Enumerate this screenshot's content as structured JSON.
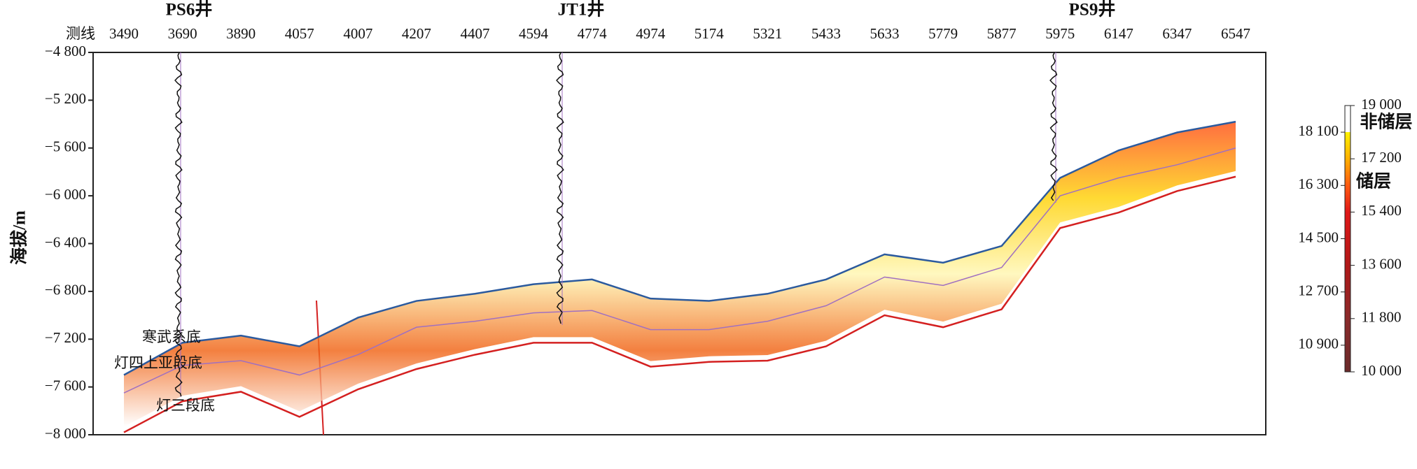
{
  "chart_data": {
    "type": "section",
    "ylabel": "海拔/m",
    "xlabel": "测线",
    "ylim": [
      -8000,
      -4800
    ],
    "yticks": [
      {
        "value": -4800,
        "label": "−4 800"
      },
      {
        "value": -5200,
        "label": "−5 200"
      },
      {
        "value": -5600,
        "label": "−5 600"
      },
      {
        "value": -6000,
        "label": "−6 000"
      },
      {
        "value": -6400,
        "label": "−6 400"
      },
      {
        "value": -6800,
        "label": "−6 800"
      },
      {
        "value": -7200,
        "label": "−7 200"
      },
      {
        "value": -7600,
        "label": "−7 600"
      },
      {
        "value": -8000,
        "label": "−8 000"
      }
    ],
    "categories": [
      "3490",
      "3690",
      "3890",
      "4057",
      "4007",
      "4207",
      "4407",
      "4594",
      "4774",
      "4974",
      "5174",
      "5321",
      "5433",
      "5633",
      "5779",
      "5877",
      "5975",
      "6147",
      "6347",
      "6547"
    ],
    "wells": [
      "PS6井",
      "JT1井",
      "PS9井"
    ],
    "series": [
      {
        "name": "寒武系底",
        "color": "#2b5a9e",
        "values": [
          -7500,
          -7230,
          -7170,
          -7260,
          -7020,
          -6880,
          -6820,
          -6740,
          -6700,
          -6860,
          -6880,
          -6820,
          -6700,
          -6490,
          -6560,
          -6420,
          -5850,
          -5620,
          -5470,
          -5380
        ]
      },
      {
        "name": "灯四上亚段底",
        "color": "#a070c0",
        "values": [
          -7650,
          -7420,
          -7380,
          -7500,
          -7330,
          -7100,
          -7050,
          -6980,
          -6960,
          -7120,
          -7120,
          -7050,
          -6920,
          -6680,
          -6750,
          -6600,
          -6000,
          -5850,
          -5740,
          -5600
        ]
      },
      {
        "name": "灯三段底",
        "color": "#d42020",
        "values": [
          -7980,
          -7720,
          -7640,
          -7850,
          -7620,
          -7450,
          -7330,
          -7230,
          -7230,
          -7430,
          -7390,
          -7380,
          -7260,
          -7000,
          -7100,
          -6950,
          -6270,
          -6140,
          -5960,
          -5840
        ]
      }
    ],
    "colorbar": {
      "lim": [
        10000,
        19000
      ],
      "ticks_left": [
        {
          "value": 18100,
          "label": "18 100"
        },
        {
          "value": 16300,
          "label": "16 300"
        },
        {
          "value": 14500,
          "label": "14 500"
        },
        {
          "value": 12700,
          "label": "12 700"
        },
        {
          "value": 10900,
          "label": "10 900"
        }
      ],
      "ticks_right": [
        {
          "value": 19000,
          "label": "19 000"
        },
        {
          "value": 17200,
          "label": "17 200"
        },
        {
          "value": 15400,
          "label": "15 400"
        },
        {
          "value": 13600,
          "label": "13 600"
        },
        {
          "value": 11800,
          "label": "11 800"
        },
        {
          "value": 10000,
          "label": "10 000"
        }
      ],
      "labels": [
        "非储层",
        "储层"
      ]
    }
  }
}
